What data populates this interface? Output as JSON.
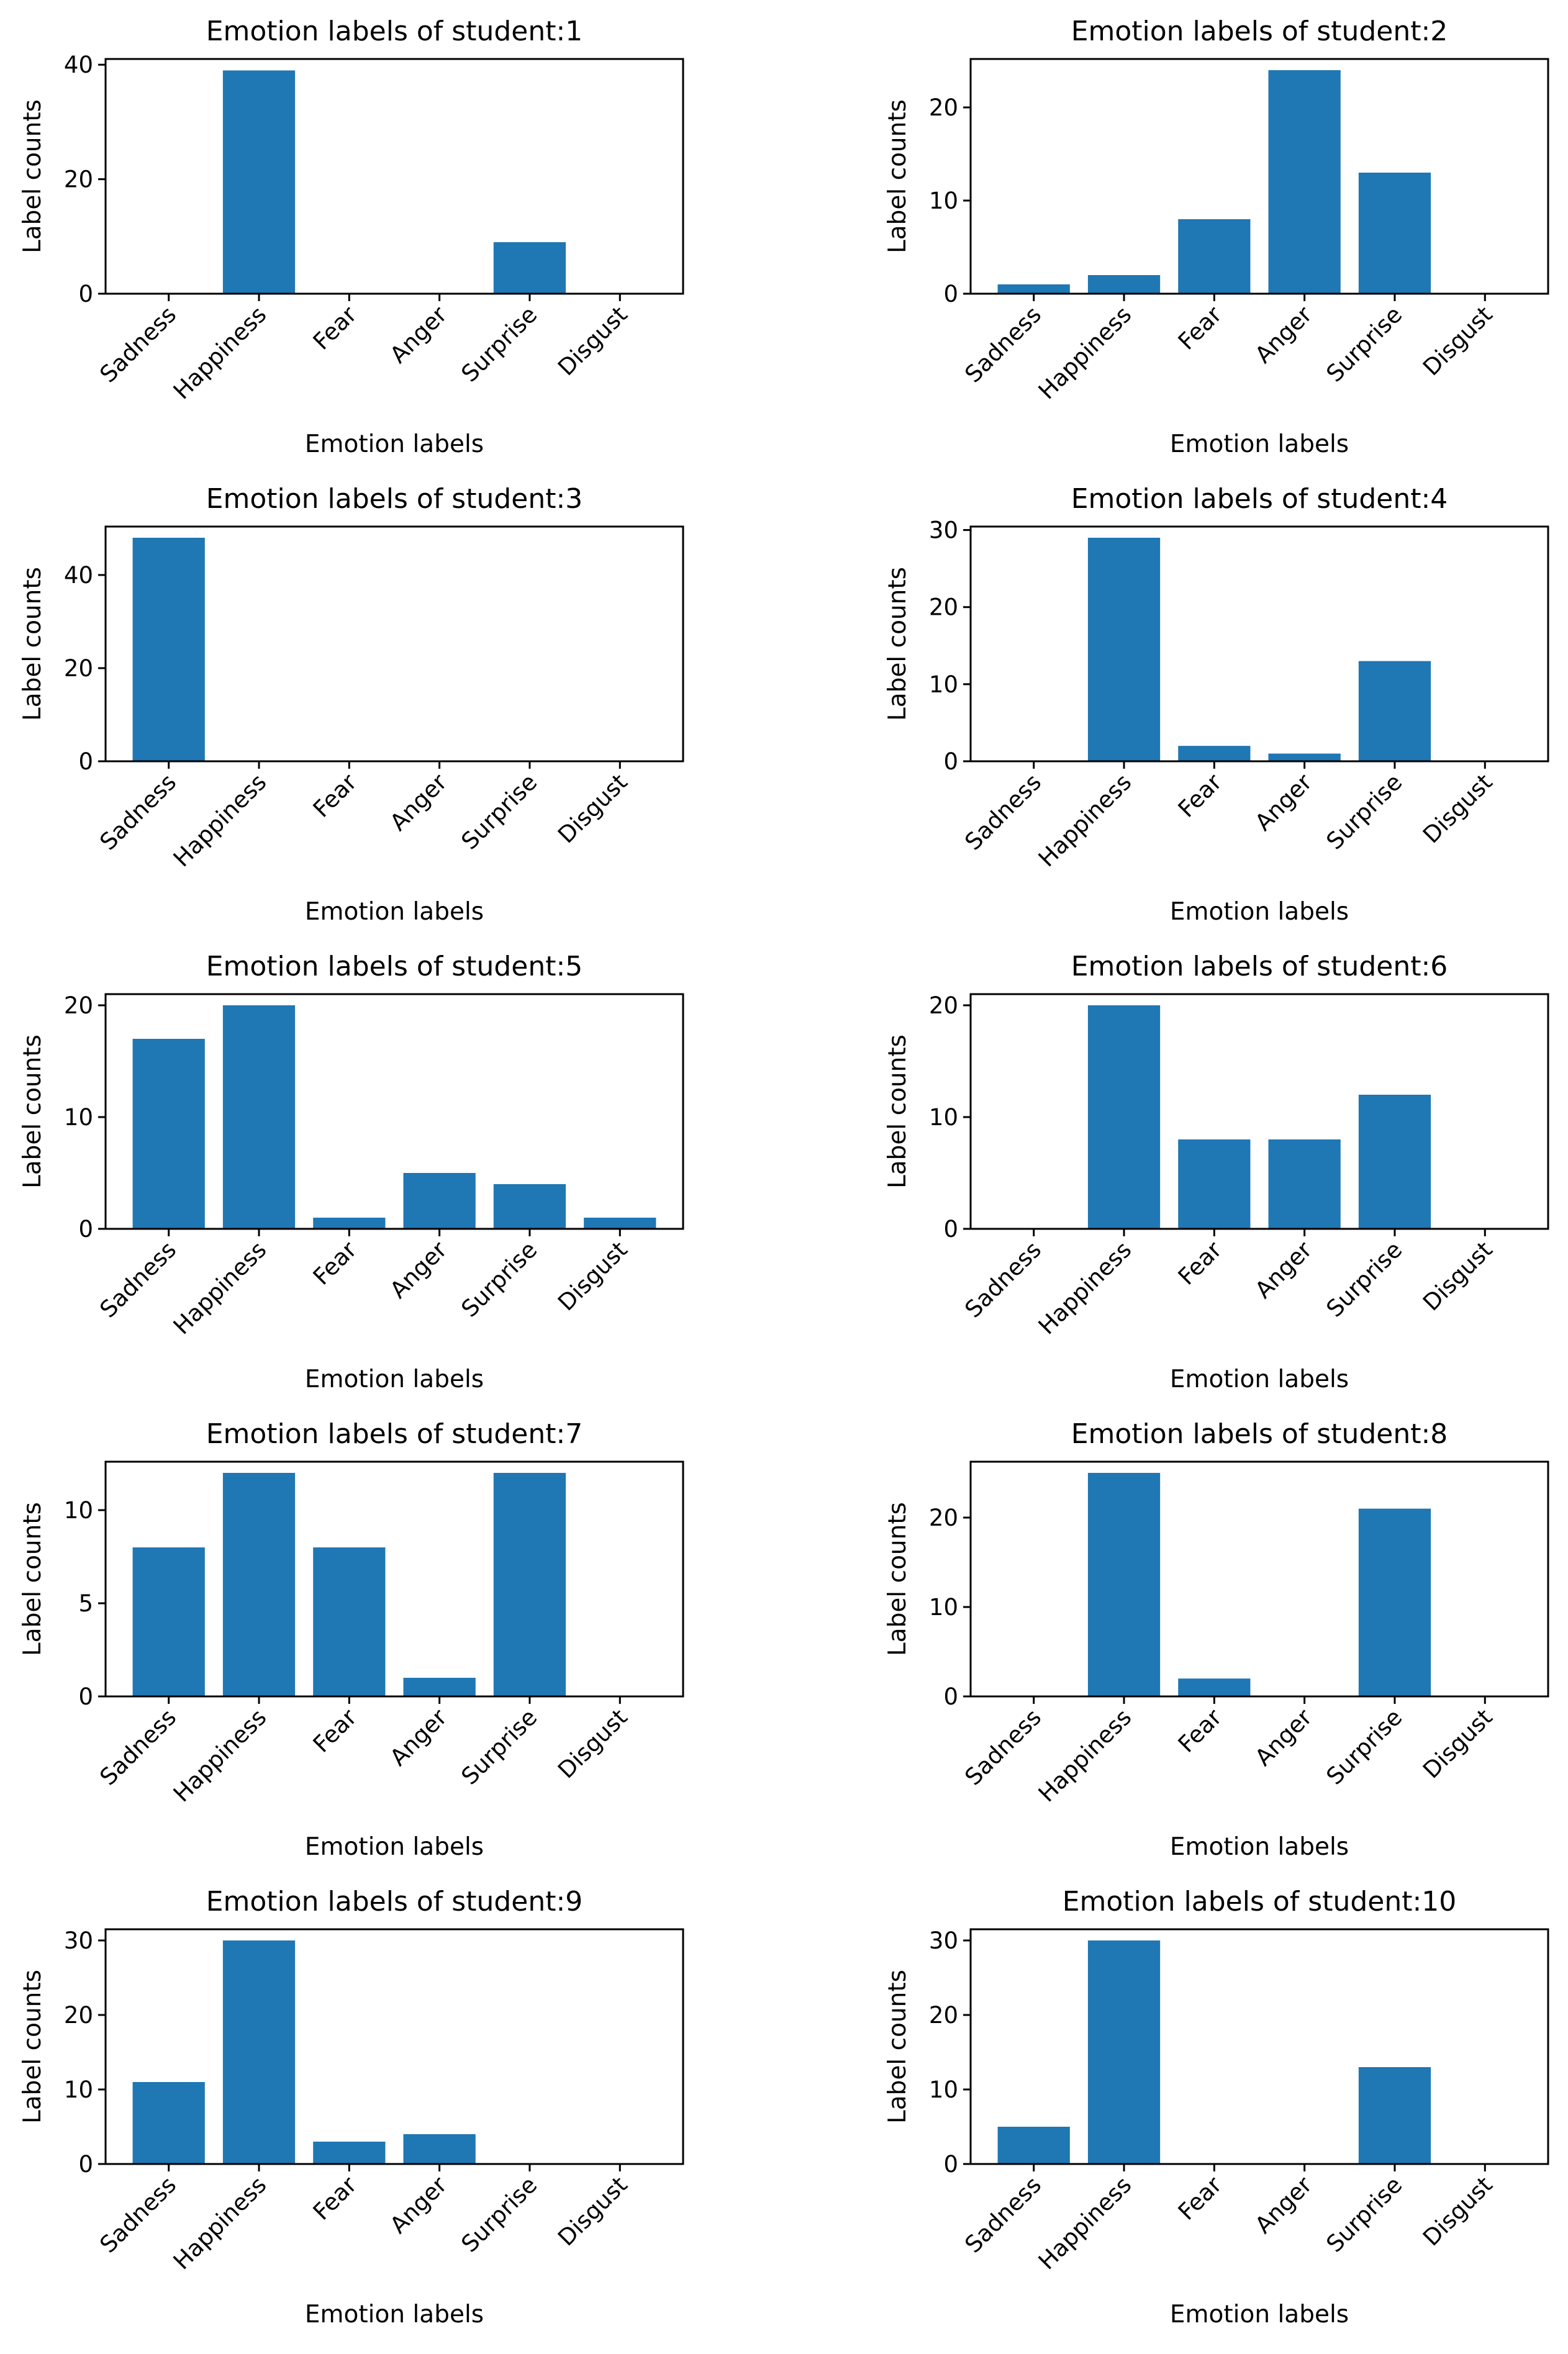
{
  "figure": {
    "layout": "5 rows x 2 columns",
    "bar_color": "#1f77b4"
  },
  "chart_data": [
    {
      "type": "bar",
      "title": "Emotion labels of student:1",
      "xlabel": "Emotion labels",
      "ylabel": "Label counts",
      "categories": [
        "Sadness",
        "Happiness",
        "Fear",
        "Anger",
        "Surprise",
        "Disgust"
      ],
      "values": [
        0,
        39,
        0,
        0,
        9,
        0
      ],
      "ylim": [
        0,
        41
      ],
      "yticks": [
        0,
        20,
        40
      ]
    },
    {
      "type": "bar",
      "title": "Emotion labels of student:2",
      "xlabel": "Emotion labels",
      "ylabel": "Label counts",
      "categories": [
        "Sadness",
        "Happiness",
        "Fear",
        "Anger",
        "Surprise",
        "Disgust"
      ],
      "values": [
        1,
        2,
        8,
        24,
        13,
        0
      ],
      "ylim": [
        0,
        25.2
      ],
      "yticks": [
        0,
        10,
        20
      ]
    },
    {
      "type": "bar",
      "title": "Emotion labels of student:3",
      "xlabel": "Emotion labels",
      "ylabel": "Label counts",
      "categories": [
        "Sadness",
        "Happiness",
        "Fear",
        "Anger",
        "Surprise",
        "Disgust"
      ],
      "values": [
        48,
        0,
        0,
        0,
        0,
        0
      ],
      "ylim": [
        0,
        50.4
      ],
      "yticks": [
        0,
        20,
        40
      ]
    },
    {
      "type": "bar",
      "title": "Emotion labels of student:4",
      "xlabel": "Emotion labels",
      "ylabel": "Label counts",
      "categories": [
        "Sadness",
        "Happiness",
        "Fear",
        "Anger",
        "Surprise",
        "Disgust"
      ],
      "values": [
        0,
        29,
        2,
        1,
        13,
        0
      ],
      "ylim": [
        0,
        30.45
      ],
      "yticks": [
        0,
        10,
        20,
        30
      ]
    },
    {
      "type": "bar",
      "title": "Emotion labels of student:5",
      "xlabel": "Emotion labels",
      "ylabel": "Label counts",
      "categories": [
        "Sadness",
        "Happiness",
        "Fear",
        "Anger",
        "Surprise",
        "Disgust"
      ],
      "values": [
        17,
        20,
        1,
        5,
        4,
        1
      ],
      "ylim": [
        0,
        21
      ],
      "yticks": [
        0,
        10,
        20
      ]
    },
    {
      "type": "bar",
      "title": "Emotion labels of student:6",
      "xlabel": "Emotion labels",
      "ylabel": "Label counts",
      "categories": [
        "Sadness",
        "Happiness",
        "Fear",
        "Anger",
        "Surprise",
        "Disgust"
      ],
      "values": [
        0,
        20,
        8,
        8,
        12,
        0
      ],
      "ylim": [
        0,
        21
      ],
      "yticks": [
        0,
        10,
        20
      ]
    },
    {
      "type": "bar",
      "title": "Emotion labels of student:7",
      "xlabel": "Emotion labels",
      "ylabel": "Label counts",
      "categories": [
        "Sadness",
        "Happiness",
        "Fear",
        "Anger",
        "Surprise",
        "Disgust"
      ],
      "values": [
        8,
        12,
        8,
        1,
        12,
        0
      ],
      "ylim": [
        0,
        12.6
      ],
      "yticks": [
        0,
        5,
        10
      ]
    },
    {
      "type": "bar",
      "title": "Emotion labels of student:8",
      "xlabel": "Emotion labels",
      "ylabel": "Label counts",
      "categories": [
        "Sadness",
        "Happiness",
        "Fear",
        "Anger",
        "Surprise",
        "Disgust"
      ],
      "values": [
        0,
        25,
        2,
        0,
        21,
        0
      ],
      "ylim": [
        0,
        26.25
      ],
      "yticks": [
        0,
        10,
        20
      ]
    },
    {
      "type": "bar",
      "title": "Emotion labels of student:9",
      "xlabel": "Emotion labels",
      "ylabel": "Label counts",
      "categories": [
        "Sadness",
        "Happiness",
        "Fear",
        "Anger",
        "Surprise",
        "Disgust"
      ],
      "values": [
        11,
        30,
        3,
        4,
        0,
        0
      ],
      "ylim": [
        0,
        31.5
      ],
      "yticks": [
        0,
        10,
        20,
        30
      ]
    },
    {
      "type": "bar",
      "title": "Emotion labels of student:10",
      "xlabel": "Emotion labels",
      "ylabel": "Label counts",
      "categories": [
        "Sadness",
        "Happiness",
        "Fear",
        "Anger",
        "Surprise",
        "Disgust"
      ],
      "values": [
        5,
        30,
        0,
        0,
        13,
        0
      ],
      "ylim": [
        0,
        31.5
      ],
      "yticks": [
        0,
        10,
        20,
        30
      ]
    }
  ]
}
